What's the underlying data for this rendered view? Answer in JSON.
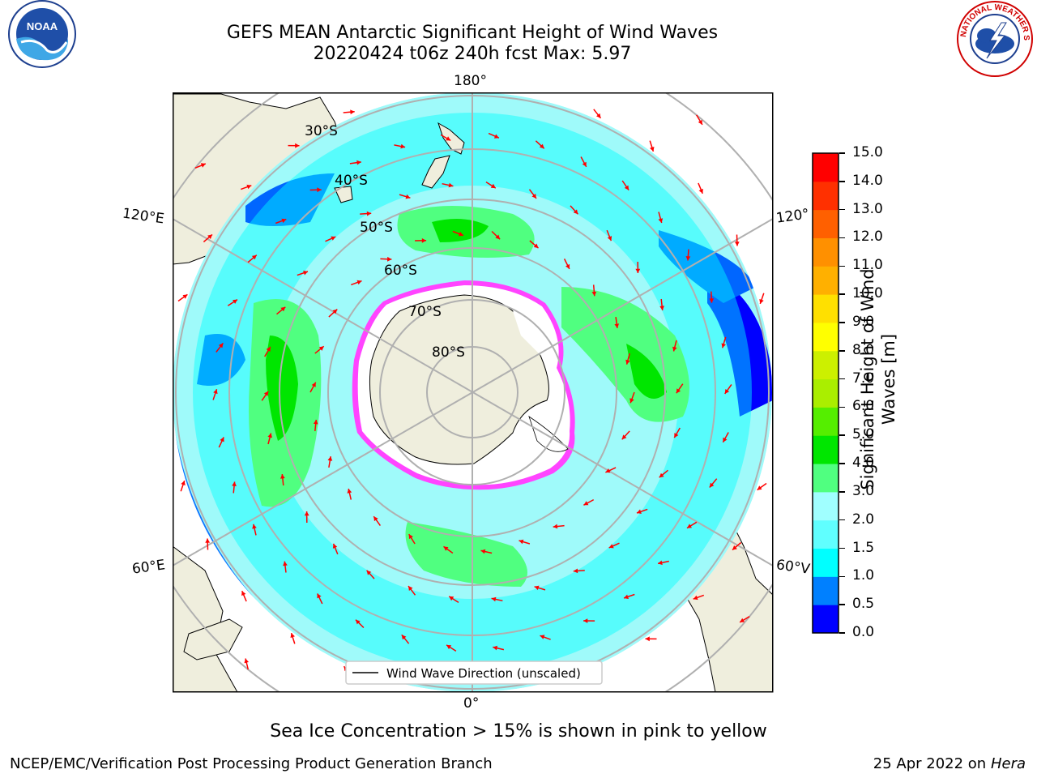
{
  "title": {
    "line1": "GEFS MEAN Antarctic Significant Height of Wind Waves",
    "line2": "20220424 t06z 240h fcst   Max: 5.97"
  },
  "map": {
    "projection": "south-polar-stereographic",
    "longitude_labels": {
      "top": "180°",
      "left_upper": "120°E",
      "right_upper": "120°",
      "left_lower": "60°E",
      "right_lower": "60°V",
      "bottom": "0°"
    },
    "latitude_labels": [
      "30°S",
      "40°S",
      "50°S",
      "60°S",
      "70°S",
      "80°S"
    ],
    "legend": "Wind Wave Direction (unscaled)",
    "arrow_color": "#ff0000",
    "land_color": "#efeedd"
  },
  "colorbar": {
    "label": "Significant Height of Wind Waves [m]",
    "label_line1": "Significant Height of Wind",
    "label_line2": "Waves [m]",
    "ticks": [
      "0.0",
      "0.5",
      "1.0",
      "1.5",
      "2.0",
      "3.0",
      "4.0",
      "5.0",
      "6.0",
      "7.0",
      "8.0",
      "9.0",
      "10.0",
      "11.0",
      "12.0",
      "13.0",
      "14.0",
      "15.0"
    ],
    "colors": [
      "#0000ff",
      "#0080ff",
      "#00ffff",
      "#60ffff",
      "#a0ffff",
      "#50ff80",
      "#00e600",
      "#55ee00",
      "#aaee00",
      "#ccf000",
      "#ffff00",
      "#ffe000",
      "#ffb000",
      "#ff9000",
      "#ff6000",
      "#ff3000",
      "#ff0000"
    ]
  },
  "note": "Sea Ice Concentration > 15% is shown in pink to yellow",
  "footer": {
    "left": "NCEP/EMC/Verification Post Processing Product Generation Branch",
    "right_date": "25 Apr 2022 on ",
    "right_machine": "Hera"
  },
  "logos": {
    "left": "NOAA",
    "right": "NATIONAL WEATHER SERVICE"
  }
}
